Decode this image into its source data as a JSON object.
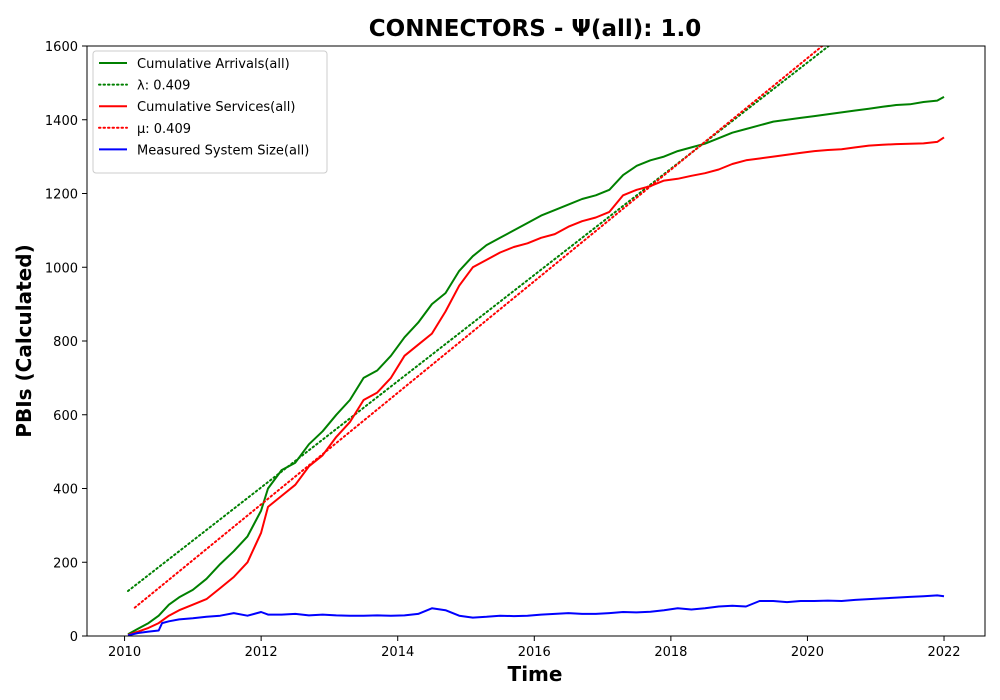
{
  "chart_data": {
    "type": "line",
    "title": "CONNECTORS -  Ψ(all): 1.0",
    "xlabel": "Time",
    "ylabel": "PBIs (Calculated)",
    "xlim": [
      2009.45,
      2022.6
    ],
    "ylim": [
      0,
      1600
    ],
    "xticks": [
      2010,
      2012,
      2014,
      2016,
      2018,
      2020,
      2022
    ],
    "yticks": [
      0,
      200,
      400,
      600,
      800,
      1000,
      1200,
      1400,
      1600
    ],
    "grid": false,
    "legend_position": "top-left",
    "series": [
      {
        "name": "Cumulative Arrivals(all)",
        "style": "solid",
        "color": "#008000",
        "x": [
          2010.05,
          2010.2,
          2010.35,
          2010.5,
          2010.65,
          2010.8,
          2011.0,
          2011.2,
          2011.4,
          2011.6,
          2011.8,
          2012.0,
          2012.1,
          2012.3,
          2012.5,
          2012.7,
          2012.9,
          2013.1,
          2013.3,
          2013.5,
          2013.7,
          2013.9,
          2014.1,
          2014.3,
          2014.5,
          2014.7,
          2014.9,
          2015.1,
          2015.3,
          2015.5,
          2015.7,
          2015.9,
          2016.1,
          2016.3,
          2016.5,
          2016.7,
          2016.9,
          2017.1,
          2017.3,
          2017.5,
          2017.7,
          2017.9,
          2018.1,
          2018.3,
          2018.5,
          2018.7,
          2018.9,
          2019.1,
          2019.3,
          2019.5,
          2019.7,
          2019.9,
          2020.1,
          2020.3,
          2020.5,
          2020.7,
          2020.9,
          2021.1,
          2021.3,
          2021.5,
          2021.7,
          2021.9,
          2022.0
        ],
        "y": [
          5,
          20,
          35,
          55,
          85,
          105,
          125,
          155,
          195,
          230,
          270,
          340,
          400,
          450,
          470,
          520,
          555,
          600,
          640,
          700,
          720,
          760,
          810,
          850,
          900,
          930,
          990,
          1030,
          1060,
          1080,
          1100,
          1120,
          1140,
          1155,
          1170,
          1185,
          1195,
          1210,
          1250,
          1275,
          1290,
          1300,
          1315,
          1325,
          1335,
          1350,
          1365,
          1375,
          1385,
          1395,
          1400,
          1405,
          1410,
          1415,
          1420,
          1425,
          1430,
          1435,
          1440,
          1442,
          1448,
          1452,
          1462
        ]
      },
      {
        "name": "λ: 0.409",
        "style": "dotted",
        "color": "#008000",
        "x": [
          2010.05,
          2020.45
        ],
        "y": [
          122,
          1620
        ]
      },
      {
        "name": "Cumulative Services(all)",
        "style": "solid",
        "color": "#ff0000",
        "x": [
          2010.05,
          2010.2,
          2010.35,
          2010.5,
          2010.65,
          2010.8,
          2011.0,
          2011.2,
          2011.4,
          2011.6,
          2011.8,
          2012.0,
          2012.1,
          2012.3,
          2012.5,
          2012.7,
          2012.9,
          2013.1,
          2013.3,
          2013.5,
          2013.7,
          2013.9,
          2014.1,
          2014.3,
          2014.5,
          2014.7,
          2014.9,
          2015.1,
          2015.3,
          2015.5,
          2015.7,
          2015.9,
          2016.1,
          2016.3,
          2016.5,
          2016.7,
          2016.9,
          2017.1,
          2017.3,
          2017.5,
          2017.7,
          2017.9,
          2018.1,
          2018.3,
          2018.5,
          2018.7,
          2018.9,
          2019.1,
          2019.3,
          2019.5,
          2019.7,
          2019.9,
          2020.1,
          2020.3,
          2020.5,
          2020.7,
          2020.9,
          2021.1,
          2021.3,
          2021.5,
          2021.7,
          2021.9,
          2022.0
        ],
        "y": [
          3,
          12,
          22,
          35,
          55,
          70,
          85,
          100,
          130,
          160,
          200,
          280,
          350,
          380,
          410,
          460,
          490,
          540,
          580,
          640,
          660,
          700,
          760,
          790,
          820,
          880,
          950,
          1000,
          1020,
          1040,
          1055,
          1065,
          1080,
          1090,
          1110,
          1125,
          1135,
          1150,
          1195,
          1210,
          1220,
          1235,
          1240,
          1248,
          1255,
          1265,
          1280,
          1290,
          1295,
          1300,
          1305,
          1310,
          1315,
          1318,
          1320,
          1325,
          1330,
          1332,
          1334,
          1335,
          1336,
          1340,
          1352
        ]
      },
      {
        "name": "μ: 0.409",
        "style": "dotted",
        "color": "#ff0000",
        "x": [
          2010.15,
          2020.35
        ],
        "y": [
          77,
          1620
        ]
      },
      {
        "name": "Measured System Size(all)",
        "style": "solid",
        "color": "#0000ff",
        "x": [
          2010.05,
          2010.2,
          2010.35,
          2010.5,
          2010.55,
          2010.65,
          2010.8,
          2011.0,
          2011.2,
          2011.4,
          2011.6,
          2011.8,
          2012.0,
          2012.1,
          2012.3,
          2012.5,
          2012.7,
          2012.9,
          2013.1,
          2013.3,
          2013.5,
          2013.7,
          2013.9,
          2014.1,
          2014.3,
          2014.5,
          2014.7,
          2014.9,
          2015.1,
          2015.3,
          2015.5,
          2015.7,
          2015.9,
          2016.1,
          2016.3,
          2016.5,
          2016.7,
          2016.9,
          2017.1,
          2017.3,
          2017.5,
          2017.7,
          2017.9,
          2018.1,
          2018.3,
          2018.5,
          2018.7,
          2018.9,
          2019.1,
          2019.3,
          2019.5,
          2019.7,
          2019.9,
          2020.1,
          2020.3,
          2020.5,
          2020.7,
          2020.9,
          2021.1,
          2021.3,
          2021.5,
          2021.7,
          2021.9,
          2022.0
        ],
        "y": [
          2,
          8,
          12,
          15,
          35,
          40,
          45,
          48,
          52,
          55,
          62,
          55,
          65,
          58,
          58,
          60,
          56,
          58,
          56,
          55,
          55,
          56,
          55,
          56,
          60,
          75,
          70,
          55,
          50,
          52,
          55,
          54,
          55,
          58,
          60,
          62,
          60,
          60,
          62,
          65,
          64,
          66,
          70,
          75,
          72,
          75,
          80,
          82,
          80,
          95,
          95,
          92,
          95,
          95,
          96,
          95,
          98,
          100,
          102,
          104,
          106,
          108,
          110,
          108
        ]
      }
    ]
  }
}
